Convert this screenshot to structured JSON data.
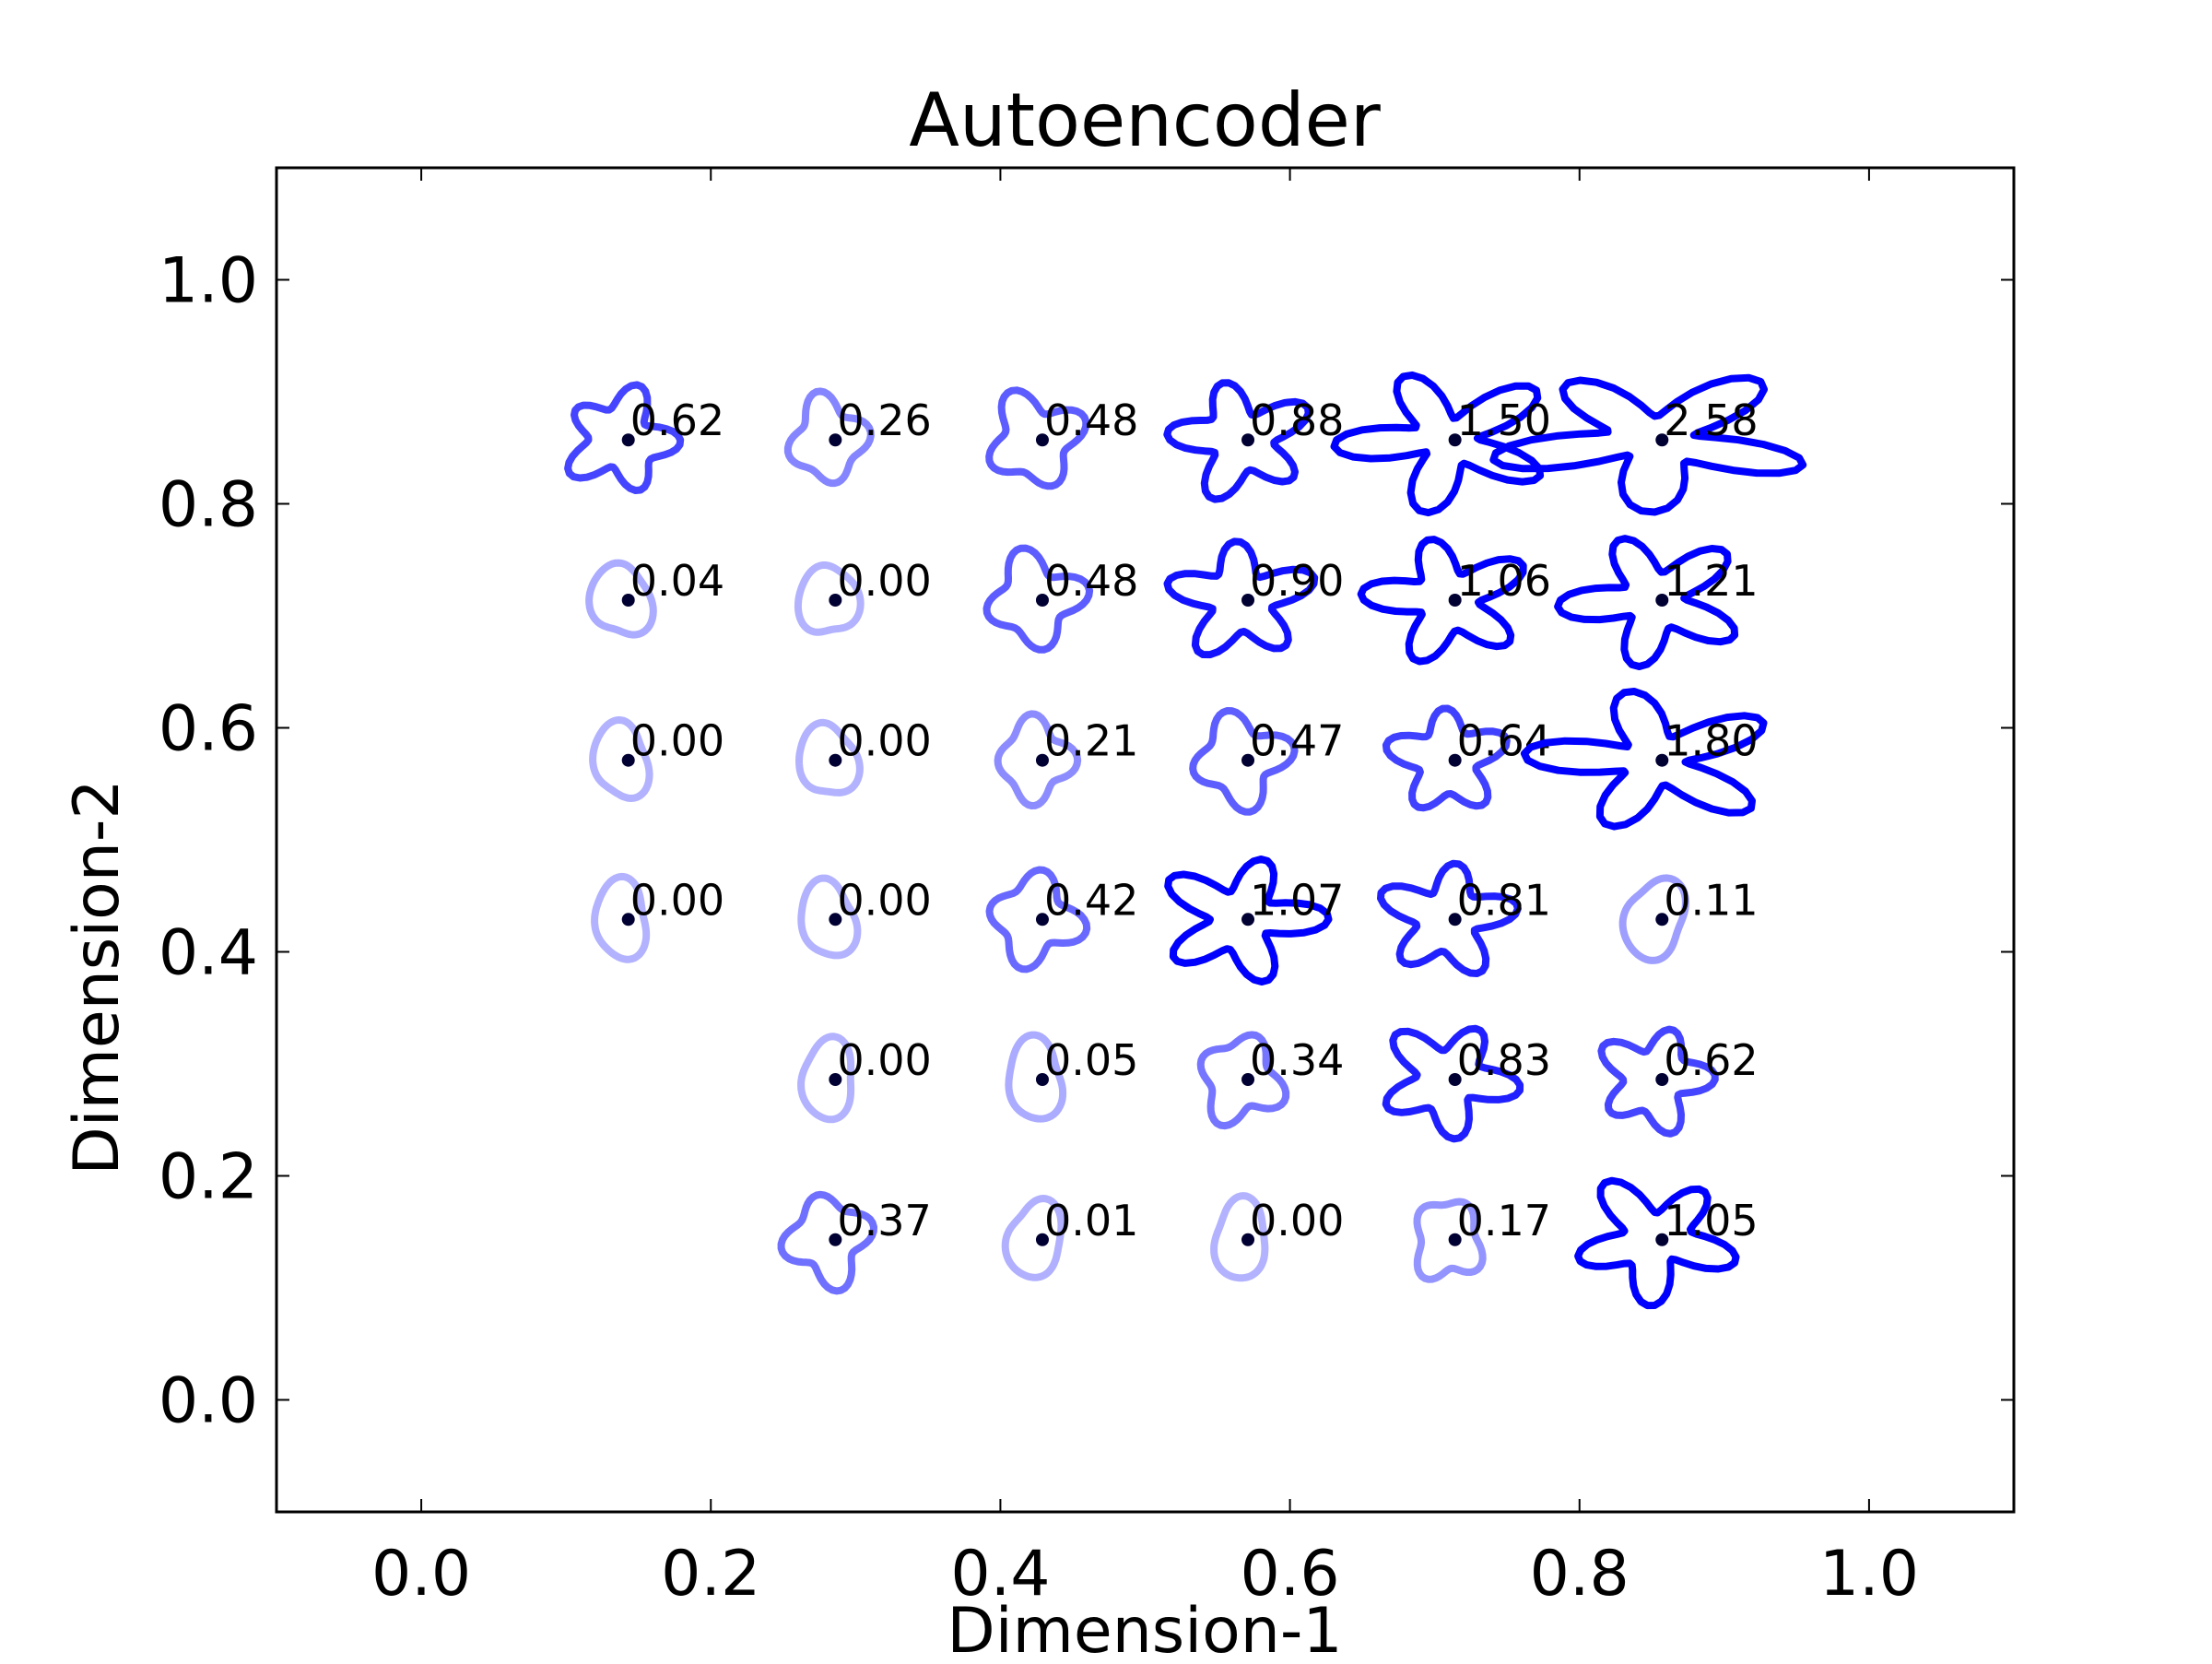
{
  "chart_data": {
    "type": "scatter",
    "title": "Autoencoder",
    "xlabel": "Dimension-1",
    "ylabel": "Dimension-2",
    "xlim": [
      -0.1,
      1.1
    ],
    "ylim": [
      -0.1,
      1.1
    ],
    "xticks": [
      "0.0",
      "0.2",
      "0.4",
      "0.6",
      "0.8",
      "1.0"
    ],
    "yticks": [
      "0.0",
      "0.2",
      "0.4",
      "0.6",
      "0.8",
      "1.0"
    ],
    "grid": false,
    "legend": "none",
    "marker_color": "#000033",
    "shape_color": "#0000ff",
    "note": "Each point is drawn with a small star-like contour shape; stroke opacity increases with the printed score.",
    "points": [
      {
        "x": 0.143,
        "y": 0.857,
        "label": "0.62"
      },
      {
        "x": 0.286,
        "y": 0.857,
        "label": "0.26"
      },
      {
        "x": 0.429,
        "y": 0.857,
        "label": "0.48"
      },
      {
        "x": 0.571,
        "y": 0.857,
        "label": "0.88"
      },
      {
        "x": 0.714,
        "y": 0.857,
        "label": "1.50"
      },
      {
        "x": 0.857,
        "y": 0.857,
        "label": "2.58"
      },
      {
        "x": 0.143,
        "y": 0.714,
        "label": "0.04"
      },
      {
        "x": 0.286,
        "y": 0.714,
        "label": "0.00"
      },
      {
        "x": 0.429,
        "y": 0.714,
        "label": "0.48"
      },
      {
        "x": 0.571,
        "y": 0.714,
        "label": "0.90"
      },
      {
        "x": 0.714,
        "y": 0.714,
        "label": "1.06"
      },
      {
        "x": 0.857,
        "y": 0.714,
        "label": "1.21"
      },
      {
        "x": 0.143,
        "y": 0.571,
        "label": "0.00"
      },
      {
        "x": 0.286,
        "y": 0.571,
        "label": "0.00"
      },
      {
        "x": 0.429,
        "y": 0.571,
        "label": "0.21"
      },
      {
        "x": 0.571,
        "y": 0.571,
        "label": "0.47"
      },
      {
        "x": 0.714,
        "y": 0.571,
        "label": "0.64"
      },
      {
        "x": 0.857,
        "y": 0.571,
        "label": "1.80"
      },
      {
        "x": 0.143,
        "y": 0.429,
        "label": "0.00"
      },
      {
        "x": 0.286,
        "y": 0.429,
        "label": "0.00"
      },
      {
        "x": 0.429,
        "y": 0.429,
        "label": "0.42"
      },
      {
        "x": 0.571,
        "y": 0.429,
        "label": "1.07"
      },
      {
        "x": 0.714,
        "y": 0.429,
        "label": "0.81"
      },
      {
        "x": 0.857,
        "y": 0.429,
        "label": "0.11"
      },
      {
        "x": 0.286,
        "y": 0.286,
        "label": "0.00"
      },
      {
        "x": 0.429,
        "y": 0.286,
        "label": "0.05"
      },
      {
        "x": 0.571,
        "y": 0.286,
        "label": "0.34"
      },
      {
        "x": 0.714,
        "y": 0.286,
        "label": "0.83"
      },
      {
        "x": 0.857,
        "y": 0.286,
        "label": "0.62"
      },
      {
        "x": 0.286,
        "y": 0.143,
        "label": "0.37"
      },
      {
        "x": 0.429,
        "y": 0.143,
        "label": "0.01"
      },
      {
        "x": 0.571,
        "y": 0.143,
        "label": "0.00"
      },
      {
        "x": 0.714,
        "y": 0.143,
        "label": "0.17"
      },
      {
        "x": 0.857,
        "y": 0.143,
        "label": "1.05"
      }
    ]
  }
}
